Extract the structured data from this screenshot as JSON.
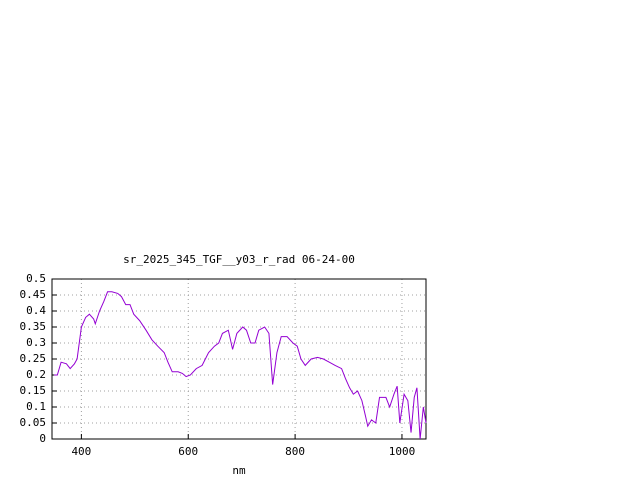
{
  "chart_data": {
    "type": "line",
    "title": "sr_2025_345_TGF__y03_r_rad 06-24-00",
    "x_label": "nm",
    "xlim": [
      345,
      1045
    ],
    "xticks": [
      400,
      600,
      800,
      1000
    ],
    "ylim": [
      0,
      0.5
    ],
    "yticks": [
      0,
      0.05,
      0.1,
      0.15,
      0.2,
      0.25,
      0.3,
      0.35,
      0.4,
      0.45,
      0.5
    ],
    "grid": true,
    "series": [
      {
        "color": "#9400d3",
        "x": [
          349,
          355,
          362,
          372,
          379,
          387,
          392,
          400,
          408,
          415,
          423,
          426,
          434,
          442,
          449,
          457,
          468,
          475,
          483,
          491,
          498,
          509,
          521,
          532,
          543,
          555,
          562,
          570,
          581,
          589,
          596,
          604,
          615,
          626,
          638,
          649,
          657,
          664,
          675,
          683,
          691,
          702,
          709,
          717,
          725,
          732,
          743,
          751,
          758,
          766,
          774,
          785,
          796,
          804,
          811,
          819,
          830,
          842,
          853,
          864,
          875,
          887,
          894,
          902,
          909,
          917,
          925,
          932,
          936,
          943,
          951,
          958,
          970,
          977,
          985,
          991,
          996,
          1004,
          1011,
          1017,
          1023,
          1028,
          1034,
          1040,
          1045
        ],
        "values": [
          0.2,
          0.2,
          0.24,
          0.235,
          0.22,
          0.235,
          0.25,
          0.35,
          0.38,
          0.39,
          0.375,
          0.36,
          0.4,
          0.43,
          0.46,
          0.46,
          0.455,
          0.445,
          0.42,
          0.42,
          0.39,
          0.37,
          0.34,
          0.31,
          0.29,
          0.27,
          0.24,
          0.21,
          0.21,
          0.205,
          0.195,
          0.2,
          0.22,
          0.23,
          0.27,
          0.29,
          0.3,
          0.33,
          0.34,
          0.28,
          0.33,
          0.35,
          0.34,
          0.3,
          0.3,
          0.34,
          0.35,
          0.33,
          0.17,
          0.27,
          0.32,
          0.32,
          0.3,
          0.29,
          0.25,
          0.23,
          0.25,
          0.255,
          0.25,
          0.24,
          0.23,
          0.22,
          0.19,
          0.16,
          0.14,
          0.15,
          0.12,
          0.07,
          0.04,
          0.06,
          0.05,
          0.13,
          0.13,
          0.1,
          0.14,
          0.165,
          0.05,
          0.14,
          0.12,
          0.02,
          0.13,
          0.16,
          0.0,
          0.1,
          0.05
        ]
      }
    ]
  }
}
